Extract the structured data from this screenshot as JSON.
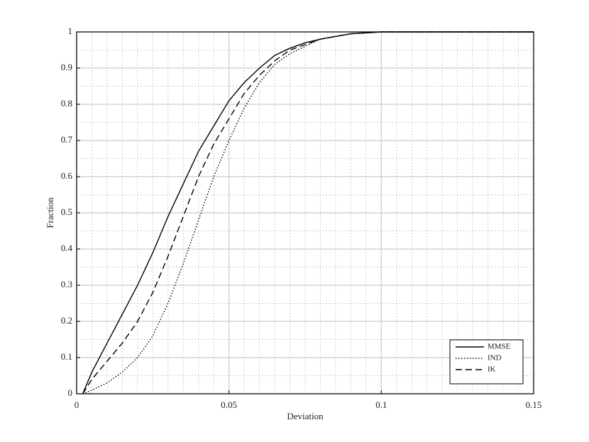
{
  "chart_data": {
    "type": "line",
    "xlabel": "Deviation",
    "ylabel": "Fraction",
    "x": [
      0.002,
      0.005,
      0.01,
      0.015,
      0.02,
      0.025,
      0.03,
      0.035,
      0.04,
      0.045,
      0.05,
      0.055,
      0.06,
      0.065,
      0.07,
      0.075,
      0.08,
      0.09,
      0.1,
      0.15
    ],
    "series": [
      {
        "name": "MMSE",
        "color": "#000000",
        "dash": "solid",
        "values": [
          0,
          0.06,
          0.14,
          0.22,
          0.3,
          0.39,
          0.49,
          0.58,
          0.67,
          0.74,
          0.81,
          0.86,
          0.9,
          0.935,
          0.955,
          0.97,
          0.98,
          0.995,
          1,
          1
        ]
      },
      {
        "name": "IND",
        "color": "#000000",
        "dash": "dotted",
        "values": [
          0,
          0.01,
          0.03,
          0.06,
          0.1,
          0.16,
          0.25,
          0.36,
          0.48,
          0.6,
          0.7,
          0.79,
          0.86,
          0.91,
          0.94,
          0.96,
          0.98,
          0.995,
          1,
          1
        ]
      },
      {
        "name": "IK",
        "color": "#000000",
        "dash": "dashed",
        "values": [
          0,
          0.04,
          0.09,
          0.14,
          0.2,
          0.28,
          0.38,
          0.49,
          0.6,
          0.69,
          0.76,
          0.83,
          0.88,
          0.92,
          0.95,
          0.965,
          0.98,
          0.995,
          1,
          1
        ]
      }
    ],
    "xlim": [
      0,
      0.15
    ],
    "xticks": [
      0,
      0.05,
      0.1,
      0.15
    ],
    "ylim": [
      0,
      1
    ],
    "yticks": [
      0,
      0.1,
      0.2,
      0.3,
      0.4,
      0.5,
      0.6,
      0.7,
      0.8,
      0.9,
      1
    ],
    "grid": true,
    "minor_grid": true,
    "legend": "lower right"
  }
}
